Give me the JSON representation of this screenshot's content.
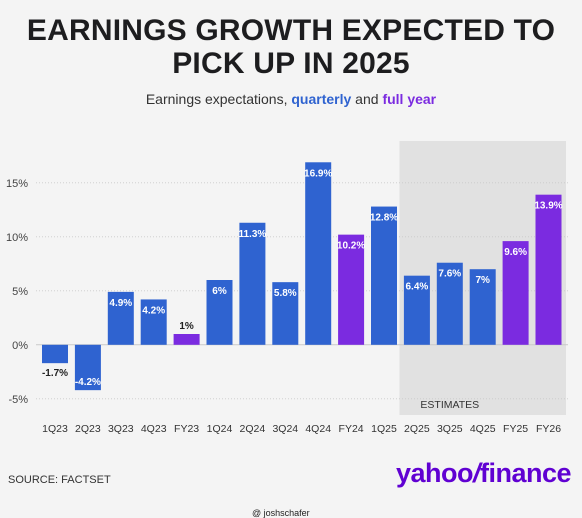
{
  "title_line1": "EARNINGS GROWTH EXPECTED TO",
  "title_line2": "PICK UP IN 2025",
  "subtitle": {
    "prefix": "Earnings expectations, ",
    "quarterly": "quarterly",
    "middle": " and ",
    "full_year": "full year"
  },
  "source": "SOURCE: FACTSET",
  "logo": {
    "part1": "yahoo",
    "slash": "/",
    "part2": "finance"
  },
  "watermark": "@ joshschafer",
  "colors": {
    "quarterly": "#2f63d0",
    "full_year": "#7b2be0",
    "estimates_band": "#e1e1e1",
    "background": "#f4f4f4"
  },
  "chart_data": {
    "type": "bar",
    "categories": [
      "1Q23",
      "2Q23",
      "3Q23",
      "4Q23",
      "FY23",
      "1Q24",
      "2Q24",
      "3Q24",
      "4Q24",
      "FY24",
      "1Q25",
      "2Q25",
      "3Q25",
      "4Q25",
      "FY25",
      "FY26"
    ],
    "values": [
      -1.7,
      -4.2,
      4.9,
      4.2,
      1,
      6,
      11.3,
      5.8,
      16.9,
      10.2,
      12.8,
      6.4,
      7.6,
      7,
      9.6,
      13.9
    ],
    "labels": [
      "-1.7%",
      "-4.2%",
      "4.9%",
      "4.2%",
      "1%",
      "6%",
      "11.3%",
      "5.8%",
      "16.9%",
      "10.2%",
      "12.8%",
      "6.4%",
      "7.6%",
      "7%",
      "9.6%",
      "13.9%"
    ],
    "kinds": [
      "quarterly",
      "quarterly",
      "quarterly",
      "quarterly",
      "full_year",
      "quarterly",
      "quarterly",
      "quarterly",
      "quarterly",
      "full_year",
      "quarterly",
      "quarterly",
      "quarterly",
      "quarterly",
      "full_year",
      "full_year"
    ],
    "y_ticks": [
      15,
      10,
      5,
      0,
      -5
    ],
    "y_tick_labels": [
      "15%",
      "10%",
      "5%",
      "0%",
      "-5%"
    ],
    "ylim": [
      -6.5,
      18.5
    ],
    "grid": true,
    "estimates_label": "ESTIMATES",
    "estimates_start_index": 11
  }
}
